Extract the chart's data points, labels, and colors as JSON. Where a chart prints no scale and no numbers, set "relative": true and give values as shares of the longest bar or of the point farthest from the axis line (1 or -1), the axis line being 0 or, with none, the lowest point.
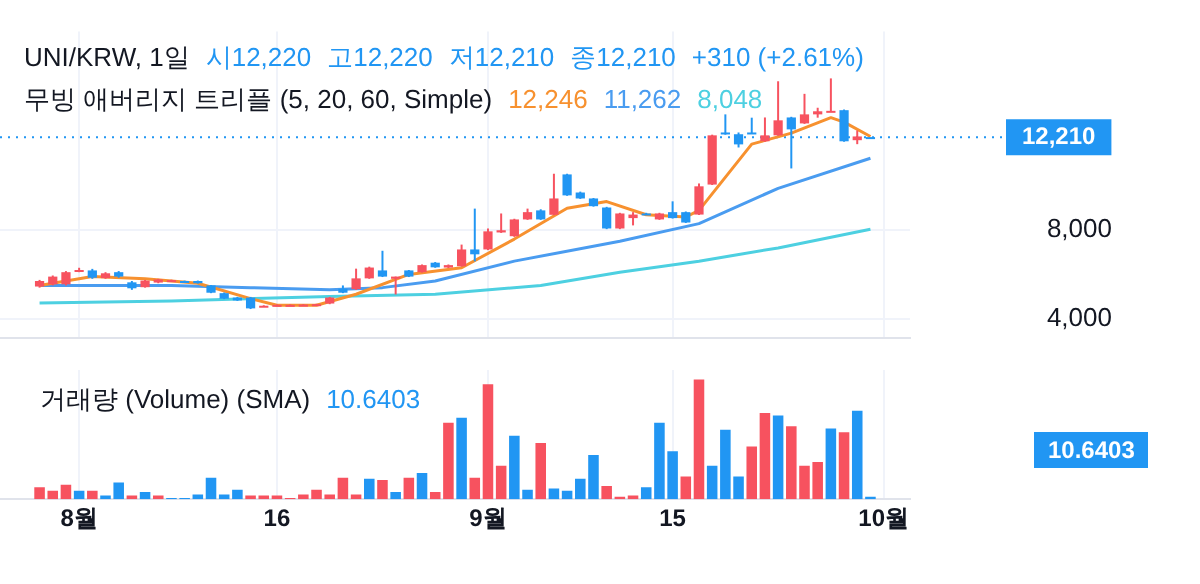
{
  "chart_data": [
    {
      "type": "candlestick",
      "title": "UNI/KRW, 1일",
      "subtitle": "무빙 애버리지 트리플 (5, 20, 60, Simple)",
      "annotations": [
        "시12,220",
        "고12,220",
        "저12,210",
        "종12,210",
        "+310 (+2.61%)",
        "12,246",
        "11,262",
        "8,048"
      ],
      "x": [
        "--07-29",
        "--07-30",
        "--07-31",
        "--08-01",
        "--08-02",
        "--08-03",
        "--08-04",
        "--08-05",
        "--08-06",
        "--08-07",
        "--08-08",
        "--08-09",
        "--08-10",
        "--08-11",
        "--08-12",
        "--08-13",
        "--08-14",
        "--08-15",
        "--08-16",
        "--08-17",
        "--08-18",
        "--08-19",
        "--08-20",
        "--08-21",
        "--08-22",
        "--08-23",
        "--08-24",
        "--08-25",
        "--08-26",
        "--08-27",
        "--08-28",
        "--08-29",
        "--08-30",
        "--08-31",
        "--09-01",
        "--09-02",
        "--09-03",
        "--09-04",
        "--09-05",
        "--09-06",
        "--09-07",
        "--09-08",
        "--09-09",
        "--09-10",
        "--09-11",
        "--09-12",
        "--09-13",
        "--09-14",
        "--09-15",
        "--09-16",
        "--09-17",
        "--09-18",
        "--09-19",
        "--09-20",
        "--09-21",
        "--09-22",
        "--09-23",
        "--09-24",
        "--09-25",
        "--09-26",
        "--09-27",
        "--09-28",
        "--09-29",
        "--09-30"
      ],
      "ohlc": [
        [
          5450,
          5750,
          5400,
          5700
        ],
        [
          5550,
          5950,
          5500,
          5900
        ],
        [
          5550,
          6150,
          5500,
          6100
        ],
        [
          6150,
          6300,
          6100,
          6200
        ],
        [
          6180,
          6250,
          5800,
          5850
        ],
        [
          5830,
          6100,
          5800,
          6050
        ],
        [
          6100,
          6150,
          5850,
          5900
        ],
        [
          5640,
          5700,
          5300,
          5370
        ],
        [
          5420,
          5750,
          5400,
          5720
        ],
        [
          5630,
          5800,
          5600,
          5770
        ],
        [
          5680,
          5760,
          5660,
          5740
        ],
        [
          5700,
          5720,
          5660,
          5680
        ],
        [
          5700,
          5720,
          5580,
          5600
        ],
        [
          5500,
          5520,
          5150,
          5170
        ],
        [
          5150,
          5180,
          4880,
          4900
        ],
        [
          4950,
          4980,
          4800,
          4820
        ],
        [
          4950,
          4980,
          4430,
          4460
        ],
        [
          4560,
          4600,
          4540,
          4580
        ],
        [
          4600,
          4640,
          4580,
          4620
        ],
        [
          4600,
          4640,
          4580,
          4620
        ],
        [
          4610,
          4650,
          4590,
          4630
        ],
        [
          4630,
          4670,
          4610,
          4650
        ],
        [
          4680,
          4980,
          4650,
          4950
        ],
        [
          5350,
          5500,
          5150,
          5170
        ],
        [
          5330,
          6260,
          5300,
          5820
        ],
        [
          5820,
          6350,
          5800,
          6310
        ],
        [
          6180,
          7070,
          5880,
          5900
        ],
        [
          5800,
          5900,
          5090,
          5900
        ],
        [
          6180,
          6200,
          5880,
          5900
        ],
        [
          6100,
          6450,
          6080,
          6420
        ],
        [
          6530,
          6560,
          6300,
          6320
        ],
        [
          6310,
          6450,
          6290,
          6420
        ],
        [
          6370,
          7350,
          6350,
          7130
        ],
        [
          7130,
          8980,
          6590,
          6910
        ],
        [
          7130,
          8080,
          7100,
          7950
        ],
        [
          7900,
          8760,
          7880,
          8000
        ],
        [
          7730,
          8520,
          7700,
          8490
        ],
        [
          8490,
          8980,
          8470,
          8820
        ],
        [
          8900,
          8950,
          8470,
          8490
        ],
        [
          8700,
          10560,
          8680,
          9440
        ],
        [
          10530,
          10560,
          9560,
          9580
        ],
        [
          9710,
          9750,
          9420,
          9440
        ],
        [
          9440,
          9460,
          9070,
          9090
        ],
        [
          9030,
          9060,
          8050,
          8080
        ],
        [
          8080,
          8790,
          8050,
          8760
        ],
        [
          8550,
          8820,
          8220,
          8710
        ],
        [
          8760,
          8790,
          8690,
          8710
        ],
        [
          8490,
          8790,
          8470,
          8760
        ],
        [
          8820,
          9310,
          8530,
          8550
        ],
        [
          8820,
          8850,
          8330,
          8350
        ],
        [
          8710,
          10120,
          8690,
          9990
        ],
        [
          10070,
          12330,
          10050,
          12300
        ],
        [
          12430,
          13250,
          12330,
          12350
        ],
        [
          12350,
          12430,
          11750,
          11890
        ],
        [
          12430,
          13100,
          12380,
          12400
        ],
        [
          12030,
          13110,
          12010,
          12300
        ],
        [
          12300,
          14750,
          12280,
          12980
        ],
        [
          13110,
          13140,
          10800,
          12570
        ],
        [
          12840,
          14180,
          12820,
          13250
        ],
        [
          13250,
          13550,
          13100,
          13390
        ],
        [
          13390,
          14880,
          13370,
          13410
        ],
        [
          13440,
          13470,
          12010,
          12030
        ],
        [
          12080,
          12520,
          11900,
          12250
        ],
        [
          12220,
          12220,
          12210,
          12210
        ]
      ],
      "colors": [
        "#f7525f",
        "#f7525f",
        "#f7525f",
        "#f7525f",
        "#2196f3",
        "#f7525f",
        "#2196f3",
        "#2196f3",
        "#f7525f",
        "#f7525f",
        "#f7525f",
        "#2196f3",
        "#2196f3",
        "#2196f3",
        "#2196f3",
        "#2196f3",
        "#2196f3",
        "#f7525f",
        "#f7525f",
        "#f7525f",
        "#f7525f",
        "#f7525f",
        "#f7525f",
        "#2196f3",
        "#f7525f",
        "#f7525f",
        "#2196f3",
        "#f7525f",
        "#2196f3",
        "#f7525f",
        "#2196f3",
        "#f7525f",
        "#f7525f",
        "#2196f3",
        "#f7525f",
        "#f7525f",
        "#f7525f",
        "#f7525f",
        "#2196f3",
        "#f7525f",
        "#2196f3",
        "#2196f3",
        "#2196f3",
        "#2196f3",
        "#f7525f",
        "#f7525f",
        "#2196f3",
        "#f7525f",
        "#2196f3",
        "#2196f3",
        "#f7525f",
        "#f7525f",
        "#2196f3",
        "#2196f3",
        "#2196f3",
        "#f7525f",
        "#f7525f",
        "#2196f3",
        "#f7525f",
        "#f7525f",
        "#f7525f",
        "#2196f3",
        "#f7525f",
        "#2196f3"
      ],
      "series": [
        {
          "type": "line",
          "color": "#f7912f",
          "x": [
            "--07-29",
            "--08-02",
            "--08-06",
            "--08-10",
            "--08-14",
            "--08-16",
            "--08-19",
            "--08-22",
            "--08-26",
            "--08-30",
            "--09-03",
            "--09-07",
            "--09-10",
            "--09-13",
            "--09-16",
            "--09-17",
            "--09-21",
            "--09-24",
            "--09-27",
            "--09-28",
            "--09-30"
          ],
          "values": [
            5500,
            5900,
            5800,
            5600,
            4900,
            4600,
            4600,
            5100,
            6000,
            6300,
            7600,
            9000,
            9300,
            8700,
            8600,
            8900,
            11900,
            12400,
            13100,
            12900,
            12246
          ]
        },
        {
          "type": "line",
          "color": "#4a9cf0",
          "x": [
            "--07-29",
            "--08-08",
            "--08-14",
            "--08-20",
            "--08-24",
            "--08-28",
            "--09-03",
            "--09-11",
            "--09-17",
            "--09-23",
            "--09-30"
          ],
          "values": [
            5500,
            5500,
            5400,
            5300,
            5400,
            5700,
            6600,
            7500,
            8300,
            9900,
            11262
          ]
        },
        {
          "type": "line",
          "color": "#4dd0e1",
          "x": [
            "--07-29",
            "--08-08",
            "--08-20",
            "--08-28",
            "--09-05",
            "--09-11",
            "--09-17",
            "--09-23",
            "--09-30"
          ],
          "values": [
            4700,
            4800,
            5000,
            5100,
            5500,
            6100,
            6600,
            7200,
            8048
          ]
        }
      ],
      "xlim": [
        "--07-26",
        "--10-03"
      ],
      "xticks": [
        {
          "value": "--08-01",
          "label": null
        },
        {
          "value": "--08-16",
          "label": null
        },
        {
          "value": "--09-01",
          "label": null
        },
        {
          "value": "--09-15",
          "label": null
        },
        {
          "value": "--10-01",
          "label": null
        }
      ],
      "ylim": [
        3100,
        17000
      ],
      "yticks": [
        {
          "value": 4000,
          "label": "4,000"
        },
        {
          "value": 8000,
          "label": "8,000"
        }
      ],
      "ref_lines": [
        {
          "axis": "y",
          "value": 12210,
          "label": "12,210",
          "color": "#2196f3",
          "line_style": "dotted"
        }
      ],
      "grid": true,
      "tick_labels": "y"
    },
    {
      "type": "bar",
      "title": "거래량 (Volume) (SMA)",
      "annotations": [
        "10.6403"
      ],
      "relative": true,
      "x": [
        "--07-29",
        "--07-30",
        "--07-31",
        "--08-01",
        "--08-02",
        "--08-03",
        "--08-04",
        "--08-05",
        "--08-06",
        "--08-07",
        "--08-08",
        "--08-09",
        "--08-10",
        "--08-11",
        "--08-12",
        "--08-13",
        "--08-14",
        "--08-15",
        "--08-16",
        "--08-17",
        "--08-18",
        "--08-19",
        "--08-20",
        "--08-21",
        "--08-22",
        "--08-23",
        "--08-24",
        "--08-25",
        "--08-26",
        "--08-27",
        "--08-28",
        "--08-29",
        "--08-30",
        "--08-31",
        "--09-01",
        "--09-02",
        "--09-03",
        "--09-04",
        "--09-05",
        "--09-06",
        "--09-07",
        "--09-08",
        "--09-09",
        "--09-10",
        "--09-11",
        "--09-12",
        "--09-13",
        "--09-14",
        "--09-15",
        "--09-16",
        "--09-17",
        "--09-18",
        "--09-19",
        "--09-20",
        "--09-21",
        "--09-22",
        "--09-23",
        "--09-24",
        "--09-25",
        "--09-26",
        "--09-27",
        "--09-28",
        "--09-29",
        "--09-30"
      ],
      "values": [
        0.1,
        0.07,
        0.12,
        0.07,
        0.07,
        0.03,
        0.14,
        0.03,
        0.06,
        0.03,
        0.01,
        0.01,
        0.04,
        0.18,
        0.04,
        0.08,
        0.03,
        0.03,
        0.03,
        0.01,
        0.04,
        0.08,
        0.04,
        0.18,
        0.04,
        0.17,
        0.16,
        0.06,
        0.18,
        0.22,
        0.06,
        0.64,
        0.68,
        0.18,
        0.96,
        0.28,
        0.53,
        0.08,
        0.47,
        0.09,
        0.07,
        0.17,
        0.37,
        0.11,
        0.02,
        0.03,
        0.1,
        0.64,
        0.4,
        0.19,
        1,
        0.28,
        0.58,
        0.19,
        0.44,
        0.72,
        0.7,
        0.61,
        0.28,
        0.31,
        0.59,
        0.56,
        0.74,
        0.02
      ],
      "colors": [
        "#f7525f",
        "#f7525f",
        "#f7525f",
        "#2196f3",
        "#f7525f",
        "#2196f3",
        "#2196f3",
        "#f7525f",
        "#2196f3",
        "#f7525f",
        "#2196f3",
        "#2196f3",
        "#2196f3",
        "#2196f3",
        "#2196f3",
        "#2196f3",
        "#f7525f",
        "#f7525f",
        "#f7525f",
        "#f7525f",
        "#f7525f",
        "#f7525f",
        "#f7525f",
        "#f7525f",
        "#f7525f",
        "#2196f3",
        "#f7525f",
        "#2196f3",
        "#f7525f",
        "#2196f3",
        "#f7525f",
        "#f7525f",
        "#2196f3",
        "#f7525f",
        "#f7525f",
        "#f7525f",
        "#2196f3",
        "#2196f3",
        "#f7525f",
        "#2196f3",
        "#2196f3",
        "#2196f3",
        "#2196f3",
        "#f7525f",
        "#f7525f",
        "#f7525f",
        "#2196f3",
        "#2196f3",
        "#2196f3",
        "#f7525f",
        "#f7525f",
        "#2196f3",
        "#2196f3",
        "#2196f3",
        "#f7525f",
        "#f7525f",
        "#2196f3",
        "#f7525f",
        "#f7525f",
        "#f7525f",
        "#2196f3",
        "#f7525f",
        "#2196f3",
        "#2196f3"
      ],
      "xlim": [
        "--07-26",
        "--10-03"
      ],
      "xticks": [
        {
          "value": "--08-01",
          "label": "8월"
        },
        {
          "value": "--08-16",
          "label": "16"
        },
        {
          "value": "--09-01",
          "label": "9월"
        },
        {
          "value": "--09-15",
          "label": "15"
        },
        {
          "value": "--10-01",
          "label": "10월"
        }
      ],
      "grid": "x",
      "tick_labels": "x"
    }
  ]
}
